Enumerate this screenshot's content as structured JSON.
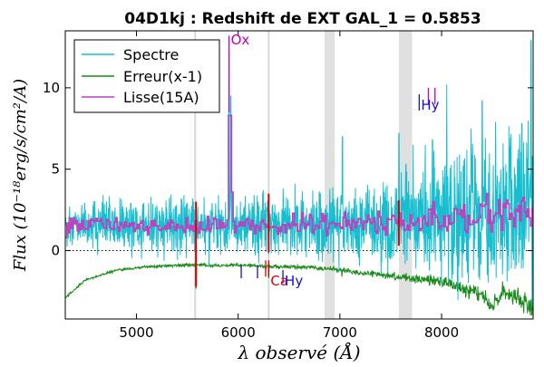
{
  "chart_data": {
    "type": "line",
    "title": "04D1kj : Redshift de EXT GAL_1 = 0.5853",
    "xlabel": "λ observé (Å)",
    "ylabel": "Flux (10⁻¹⁸erg/s/cm²/A)",
    "xlim": [
      4300,
      8900
    ],
    "ylim": [
      -4.2,
      13.5
    ],
    "xticks": [
      5000,
      6000,
      7000,
      8000
    ],
    "yticks": [
      0,
      5,
      10
    ],
    "legend_position": "top-left",
    "zero_line": "dotted",
    "shaded_bands": [
      [
        6850,
        6950
      ],
      [
        7580,
        7710
      ]
    ],
    "sky_lines": [
      5577,
      6300
    ],
    "colors": {
      "spectre": "#17becf",
      "erreur": "#1a8a1a",
      "lisse": "#bf3fbf",
      "lisse_overlap": "#7f3fbf",
      "band": "#e0e0e0",
      "sky": "#d8d8d8",
      "red_marks": "#e00000",
      "blue_marks": "#1010e0",
      "magenta_marks": "#bf00bf",
      "axis": "#000000"
    },
    "series": [
      {
        "name": "Spectre",
        "generator": "noisy",
        "x": [
          4300,
          4600,
          5000,
          5300,
          5600,
          5900,
          6200,
          6600,
          7000,
          7400,
          7800,
          8200,
          8500,
          8700,
          8900
        ],
        "y": [
          1.5,
          1.6,
          1.5,
          1.6,
          1.5,
          1.6,
          1.5,
          1.5,
          1.6,
          1.6,
          1.8,
          2.2,
          2.4,
          2.6,
          2.6
        ],
        "noise": [
          1.0,
          1.1,
          1.1,
          1.2,
          1.2,
          1.3,
          1.4,
          1.5,
          1.6,
          1.8,
          2.3,
          2.9,
          3.4,
          3.8,
          4.0
        ],
        "spikes": [
          [
            5578,
            0.4
          ],
          [
            5910,
            12.3
          ],
          [
            5928,
            9.5
          ],
          [
            6300,
            -0.2
          ],
          [
            7025,
            7.0
          ],
          [
            7580,
            7.2
          ],
          [
            7650,
            5.3
          ],
          [
            7720,
            6.5
          ],
          [
            7840,
            6.5
          ],
          [
            7910,
            6.8
          ],
          [
            8050,
            10.2
          ],
          [
            8290,
            7.5
          ],
          [
            8400,
            9.2
          ],
          [
            8790,
            7.8
          ],
          [
            8880,
            12.9
          ]
        ]
      },
      {
        "name": "Erreur(x-1)",
        "generator": "smooth",
        "x": [
          4300,
          4500,
          4800,
          5100,
          5400,
          5560,
          5600,
          5800,
          6100,
          6400,
          6700,
          7000,
          7300,
          7600,
          7800,
          8000,
          8200,
          8400,
          8500,
          8600,
          8700,
          8800,
          8900
        ],
        "y": [
          -2.9,
          -1.8,
          -1.2,
          -1.0,
          -0.9,
          -0.9,
          -0.9,
          -0.9,
          -0.9,
          -1.0,
          -1.0,
          -1.2,
          -1.4,
          -1.6,
          -1.8,
          -1.9,
          -2.3,
          -2.7,
          -3.5,
          -2.4,
          -2.8,
          -3.3,
          -3.6
        ],
        "noise": [
          0.05,
          0.05,
          0.06,
          0.06,
          0.07,
          0.07,
          0.07,
          0.08,
          0.08,
          0.09,
          0.1,
          0.12,
          0.14,
          0.16,
          0.2,
          0.25,
          0.3,
          0.35,
          0.4,
          0.4,
          0.45,
          0.5,
          0.5
        ],
        "spikes": [
          [
            5585,
            -2.3
          ],
          [
            6300,
            -1.7
          ],
          [
            7020,
            -1.6
          ]
        ]
      },
      {
        "name": "Lisse(15A)",
        "generator": "step",
        "x": [
          4300,
          4600,
          5000,
          5300,
          5600,
          5900,
          6200,
          6600,
          7000,
          7400,
          7800,
          8200,
          8500,
          8900
        ],
        "y": [
          1.4,
          1.7,
          1.5,
          1.6,
          1.5,
          1.6,
          1.5,
          1.6,
          1.6,
          1.7,
          1.8,
          2.0,
          2.1,
          2.2
        ],
        "noise": [
          0.35,
          0.35,
          0.35,
          0.4,
          0.4,
          0.4,
          0.45,
          0.5,
          0.5,
          0.55,
          0.6,
          0.7,
          0.8,
          0.8
        ],
        "spikes": [
          [
            5912,
            8.3
          ],
          [
            5928,
            3.6
          ],
          [
            7915,
            3.0
          ]
        ]
      }
    ],
    "line_markers": [
      {
        "label": "Ox",
        "x": 5910,
        "y": 13.0,
        "color": "magenta_marks",
        "bar_from": 8.5,
        "bar_to": 13.2
      },
      {
        "label": "Hy",
        "x": 7780,
        "y": 9.0,
        "color": "blue_marks",
        "bar_from": 8.6,
        "bar_to": 9.6
      },
      {
        "label": "",
        "x": 7870,
        "y": 0,
        "color": "magenta_marks",
        "bar_from": 9.0,
        "bar_to": 10.0
      },
      {
        "label": "",
        "x": 7935,
        "y": 0,
        "color": "magenta_marks",
        "bar_from": 9.0,
        "bar_to": 10.0
      },
      {
        "label": "",
        "x": 6030,
        "y": 0,
        "color": "blue_marks",
        "bar_from": -1.7,
        "bar_to": -0.9
      },
      {
        "label": "",
        "x": 6190,
        "y": 0,
        "color": "blue_marks",
        "bar_from": -1.7,
        "bar_to": -0.9
      },
      {
        "label": "",
        "x": 6270,
        "y": 0,
        "color": "red_marks",
        "bar_from": -1.6,
        "bar_to": -0.6
      },
      {
        "label": "Ca",
        "x": 6300,
        "y": -1.8,
        "color": "red_marks",
        "bar_from": -1.6,
        "bar_to": -0.6
      },
      {
        "label": "Hy",
        "x": 6440,
        "y": -1.8,
        "color": "blue_marks",
        "bar_from": -2.0,
        "bar_to": -1.2
      }
    ],
    "red_emission_marks": [
      {
        "x": 5585,
        "from": -2.2,
        "to": 3.0
      },
      {
        "x": 6300,
        "from": -0.1,
        "to": 3.5
      },
      {
        "x": 7580,
        "from": 0.3,
        "to": 3.1
      }
    ]
  }
}
